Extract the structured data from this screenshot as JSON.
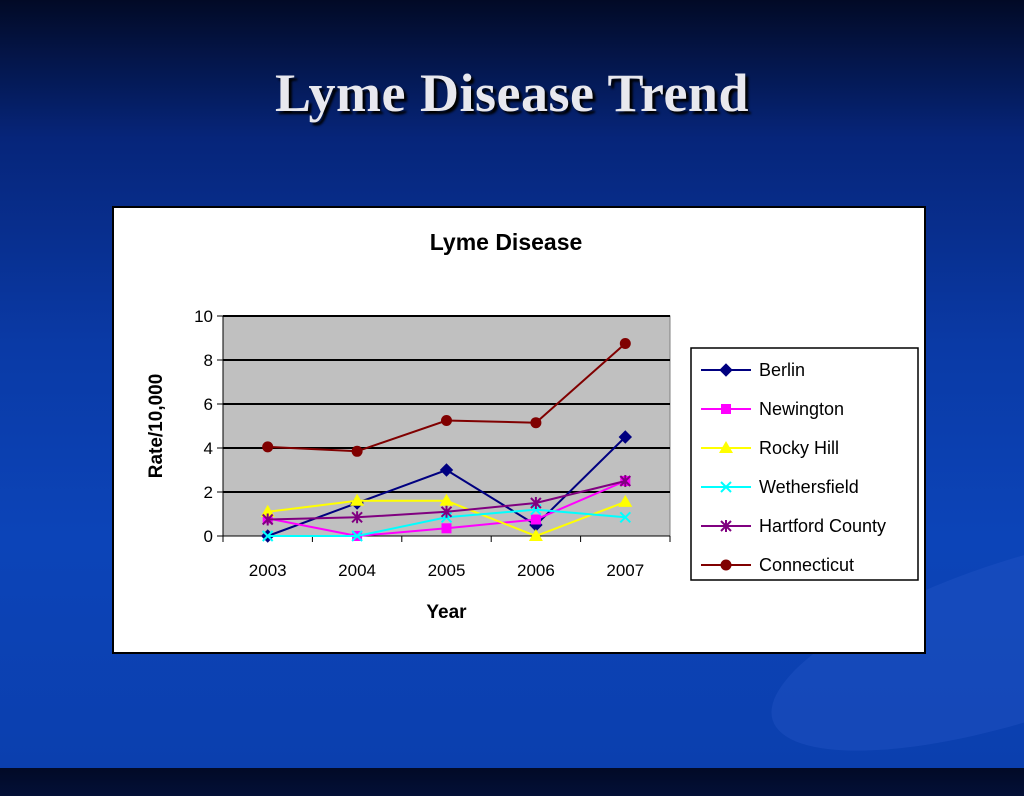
{
  "slide": {
    "title": "Lyme Disease Trend"
  },
  "chart_data": {
    "type": "line",
    "title": "Lyme Disease",
    "xlabel": "Year",
    "ylabel": "Rate/10,000",
    "categories": [
      "2003",
      "2004",
      "2005",
      "2006",
      "2007"
    ],
    "ylim": [
      0,
      10
    ],
    "yticks": [
      0,
      2,
      4,
      6,
      8,
      10
    ],
    "grid": true,
    "legend": "right",
    "plot_background": "#c0c0c0",
    "series": [
      {
        "name": "Berlin",
        "values": [
          0,
          1.5,
          3.0,
          0.5,
          4.5
        ],
        "color": "#000080",
        "marker": "diamond"
      },
      {
        "name": "Newington",
        "values": [
          0.8,
          0.0,
          0.35,
          0.75,
          2.5
        ],
        "color": "#ff00ff",
        "marker": "square"
      },
      {
        "name": "Rocky Hill",
        "values": [
          1.1,
          1.6,
          1.6,
          0.0,
          1.55
        ],
        "color": "#ffff00",
        "marker": "triangle"
      },
      {
        "name": "Wethersfield",
        "values": [
          0.0,
          0.0,
          0.85,
          1.2,
          0.85
        ],
        "color": "#00ffff",
        "marker": "x"
      },
      {
        "name": "Hartford County",
        "values": [
          0.75,
          0.85,
          1.1,
          1.5,
          2.5
        ],
        "color": "#800080",
        "marker": "asterisk"
      },
      {
        "name": "Connecticut",
        "values": [
          4.05,
          3.85,
          5.25,
          5.15,
          8.75
        ],
        "color": "#800000",
        "marker": "circle"
      }
    ]
  }
}
